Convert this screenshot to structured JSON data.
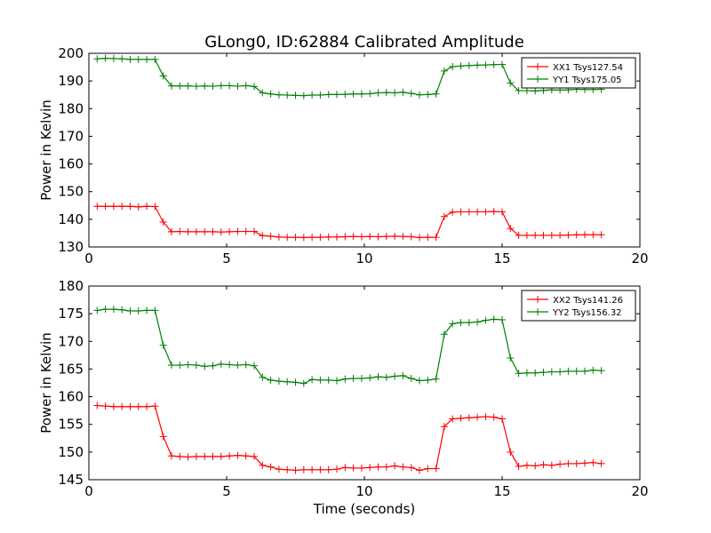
{
  "figure": {
    "title": "GLong0, ID:62884 Calibrated Amplitude"
  },
  "chart_data": [
    {
      "type": "line",
      "title": "GLong0, ID:62884 Calibrated Amplitude",
      "xlabel": "",
      "ylabel": "Power in Kelvin",
      "xlim": [
        0,
        20
      ],
      "ylim": [
        130,
        200
      ],
      "xticks": [
        0,
        5,
        10,
        15,
        20
      ],
      "yticks": [
        130,
        140,
        150,
        160,
        170,
        180,
        190,
        200
      ],
      "grid": false,
      "legend_position": "top-right",
      "marker": "plus",
      "x": [
        0.3,
        0.6,
        0.9,
        1.2,
        1.5,
        1.8,
        2.1,
        2.4,
        2.7,
        3.0,
        3.3,
        3.6,
        3.9,
        4.2,
        4.5,
        4.8,
        5.1,
        5.4,
        5.7,
        6.0,
        6.3,
        6.6,
        6.9,
        7.2,
        7.5,
        7.8,
        8.1,
        8.4,
        8.7,
        9.0,
        9.3,
        9.6,
        9.9,
        10.2,
        10.5,
        10.8,
        11.1,
        11.4,
        11.7,
        12.0,
        12.3,
        12.6,
        12.9,
        13.2,
        13.5,
        13.8,
        14.1,
        14.4,
        14.7,
        15.0,
        15.3,
        15.6,
        15.9,
        16.2,
        16.5,
        16.8,
        17.1,
        17.4,
        17.7,
        18.0,
        18.3,
        18.6
      ],
      "series": [
        {
          "name": "XX1 Tsys127.54",
          "color": "#ff0000",
          "values": [
            144.7,
            144.7,
            144.7,
            144.7,
            144.7,
            144.5,
            144.7,
            144.6,
            139.0,
            135.5,
            135.6,
            135.5,
            135.5,
            135.5,
            135.5,
            135.4,
            135.5,
            135.6,
            135.6,
            135.6,
            134.1,
            133.9,
            133.6,
            133.5,
            133.5,
            133.4,
            133.5,
            133.5,
            133.6,
            133.6,
            133.7,
            133.8,
            133.7,
            133.8,
            133.7,
            133.8,
            133.9,
            133.8,
            133.7,
            133.4,
            133.5,
            133.5,
            141.0,
            142.6,
            142.7,
            142.7,
            142.7,
            142.7,
            142.8,
            142.7,
            136.7,
            134.2,
            134.2,
            134.2,
            134.2,
            134.2,
            134.2,
            134.3,
            134.4,
            134.4,
            134.4,
            134.4
          ]
        },
        {
          "name": "YY1 Tsys175.05",
          "color": "#008000",
          "values": [
            198.0,
            198.2,
            198.1,
            198.0,
            197.8,
            197.8,
            197.8,
            197.8,
            191.8,
            188.2,
            188.2,
            188.2,
            188.1,
            188.2,
            188.1,
            188.3,
            188.3,
            188.1,
            188.3,
            188.0,
            185.7,
            185.3,
            185.0,
            184.9,
            184.8,
            184.7,
            184.9,
            184.9,
            185.1,
            185.1,
            185.2,
            185.3,
            185.3,
            185.4,
            185.7,
            185.8,
            185.7,
            185.9,
            185.5,
            185.0,
            185.1,
            185.3,
            193.6,
            195.2,
            195.4,
            195.6,
            195.7,
            195.8,
            195.9,
            196.0,
            189.3,
            186.5,
            186.5,
            186.4,
            186.6,
            186.8,
            186.7,
            186.8,
            187.0,
            186.9,
            186.9,
            187.0
          ]
        }
      ]
    },
    {
      "type": "line",
      "title": "",
      "xlabel": "Time (seconds)",
      "ylabel": "Power in Kelvin",
      "xlim": [
        0,
        20
      ],
      "ylim": [
        145,
        180
      ],
      "xticks": [
        0,
        5,
        10,
        15,
        20
      ],
      "yticks": [
        145,
        150,
        155,
        160,
        165,
        170,
        175,
        180
      ],
      "grid": false,
      "legend_position": "top-right",
      "marker": "plus",
      "x": [
        0.3,
        0.6,
        0.9,
        1.2,
        1.5,
        1.8,
        2.1,
        2.4,
        2.7,
        3.0,
        3.3,
        3.6,
        3.9,
        4.2,
        4.5,
        4.8,
        5.1,
        5.4,
        5.7,
        6.0,
        6.3,
        6.6,
        6.9,
        7.2,
        7.5,
        7.8,
        8.1,
        8.4,
        8.7,
        9.0,
        9.3,
        9.6,
        9.9,
        10.2,
        10.5,
        10.8,
        11.1,
        11.4,
        11.7,
        12.0,
        12.3,
        12.6,
        12.9,
        13.2,
        13.5,
        13.8,
        14.1,
        14.4,
        14.7,
        15.0,
        15.3,
        15.6,
        15.9,
        16.2,
        16.5,
        16.8,
        17.1,
        17.4,
        17.7,
        18.0,
        18.3,
        18.6
      ],
      "series": [
        {
          "name": "XX2 Tsys141.26",
          "color": "#ff0000",
          "values": [
            158.4,
            158.3,
            158.2,
            158.2,
            158.2,
            158.2,
            158.2,
            158.3,
            152.8,
            149.3,
            149.2,
            149.1,
            149.2,
            149.2,
            149.2,
            149.2,
            149.3,
            149.4,
            149.3,
            149.2,
            147.6,
            147.3,
            146.9,
            146.8,
            146.7,
            146.8,
            146.8,
            146.8,
            146.8,
            146.9,
            147.2,
            147.1,
            147.1,
            147.2,
            147.3,
            147.3,
            147.5,
            147.3,
            147.2,
            146.7,
            147.0,
            147.0,
            154.6,
            156.0,
            156.1,
            156.2,
            156.3,
            156.4,
            156.3,
            156.0,
            150.0,
            147.4,
            147.6,
            147.5,
            147.7,
            147.6,
            147.8,
            147.9,
            147.9,
            148.0,
            148.1,
            147.9
          ]
        },
        {
          "name": "YY2 Tsys156.32",
          "color": "#008000",
          "values": [
            175.6,
            175.8,
            175.8,
            175.7,
            175.5,
            175.5,
            175.6,
            175.6,
            169.3,
            165.7,
            165.7,
            165.8,
            165.7,
            165.5,
            165.6,
            165.9,
            165.8,
            165.7,
            165.8,
            165.6,
            163.5,
            163.0,
            162.8,
            162.7,
            162.6,
            162.4,
            163.1,
            163.0,
            163.0,
            162.9,
            163.2,
            163.3,
            163.3,
            163.4,
            163.6,
            163.5,
            163.7,
            163.8,
            163.3,
            162.9,
            163.0,
            163.2,
            171.3,
            173.2,
            173.4,
            173.4,
            173.5,
            173.8,
            174.0,
            173.9,
            167.0,
            164.2,
            164.3,
            164.3,
            164.4,
            164.5,
            164.5,
            164.6,
            164.6,
            164.6,
            164.8,
            164.7
          ]
        }
      ]
    }
  ]
}
